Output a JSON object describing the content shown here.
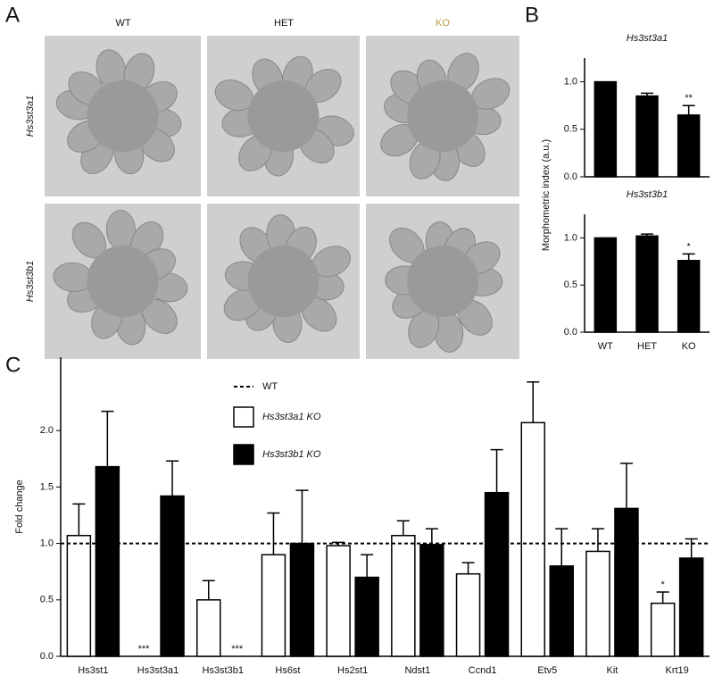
{
  "panel_labels": [
    "A",
    "B",
    "C"
  ],
  "micrographs": {
    "columns": [
      "WT",
      "HET",
      "KO"
    ],
    "rows": [
      "Hs3st3a1",
      "Hs3st3b1"
    ]
  },
  "chart_data": [
    {
      "type": "bar",
      "title": "Hs3st3a1",
      "ylabel": "Morphometric index (a.u.)",
      "values": [
        1.0,
        0.85,
        0.65
      ],
      "errors": [
        null,
        0.03,
        0.1
      ],
      "significance": [
        null,
        null,
        "**"
      ],
      "color": "#000000",
      "ylim": [
        0,
        1.25
      ],
      "yticks": [
        {
          "value": 0,
          "label": "0.0"
        },
        {
          "value": 0.5,
          "label": "0.5"
        },
        {
          "value": 1,
          "label": "1.0"
        }
      ]
    },
    {
      "type": "bar",
      "title": "Hs3st3b1",
      "categories": [
        "WT",
        "HET",
        "KO"
      ],
      "values": [
        1.0,
        1.02,
        0.76
      ],
      "errors": [
        null,
        0.02,
        0.07
      ],
      "significance": [
        null,
        null,
        "*"
      ],
      "color": "#000000",
      "ylim": [
        0,
        1.25
      ],
      "yticks": [
        {
          "value": 0,
          "label": "0.0"
        },
        {
          "value": 0.5,
          "label": "0.5"
        },
        {
          "value": 1,
          "label": "1.0"
        }
      ]
    },
    {
      "type": "grouped-bar",
      "ylabel": "Fold change",
      "categories": [
        "Hs3st1",
        "Hs3st3a1",
        "Hs3st3b1",
        "Hs6st",
        "Hs2st1",
        "Ndst1",
        "Ccnd1",
        "Etv5",
        "Kit",
        "Krt19"
      ],
      "series": [
        {
          "name": "Hs3st3a1 KO",
          "color": "#ffffff",
          "values": [
            1.07,
            0,
            0.5,
            0.9,
            0.98,
            1.07,
            0.73,
            2.07,
            0.93,
            0.47
          ],
          "errors": [
            0.28,
            null,
            0.17,
            0.37,
            0.03,
            0.13,
            0.1,
            0.36,
            0.2,
            0.1
          ],
          "significance": [
            null,
            "***",
            null,
            null,
            null,
            null,
            null,
            null,
            null,
            "*"
          ]
        },
        {
          "name": "Hs3st3b1 KO",
          "color": "#000000",
          "values": [
            1.68,
            1.42,
            0,
            1.0,
            0.7,
            0.99,
            1.45,
            0.8,
            1.31,
            0.87
          ],
          "errors": [
            0.49,
            0.31,
            null,
            0.47,
            0.2,
            0.14,
            0.38,
            0.33,
            0.4,
            0.17
          ],
          "significance": [
            null,
            null,
            "***",
            null,
            null,
            null,
            null,
            null,
            null,
            null
          ]
        }
      ],
      "reference_line": {
        "name": "WT",
        "value": 1
      },
      "ylim": [
        0,
        2.65
      ],
      "yticks": [
        {
          "value": 0,
          "label": "0.0"
        },
        {
          "value": 0.5,
          "label": "0.5"
        },
        {
          "value": 1,
          "label": "1.0"
        },
        {
          "value": 1.5,
          "label": "1.5"
        },
        {
          "value": 2,
          "label": "2.0"
        }
      ]
    }
  ]
}
